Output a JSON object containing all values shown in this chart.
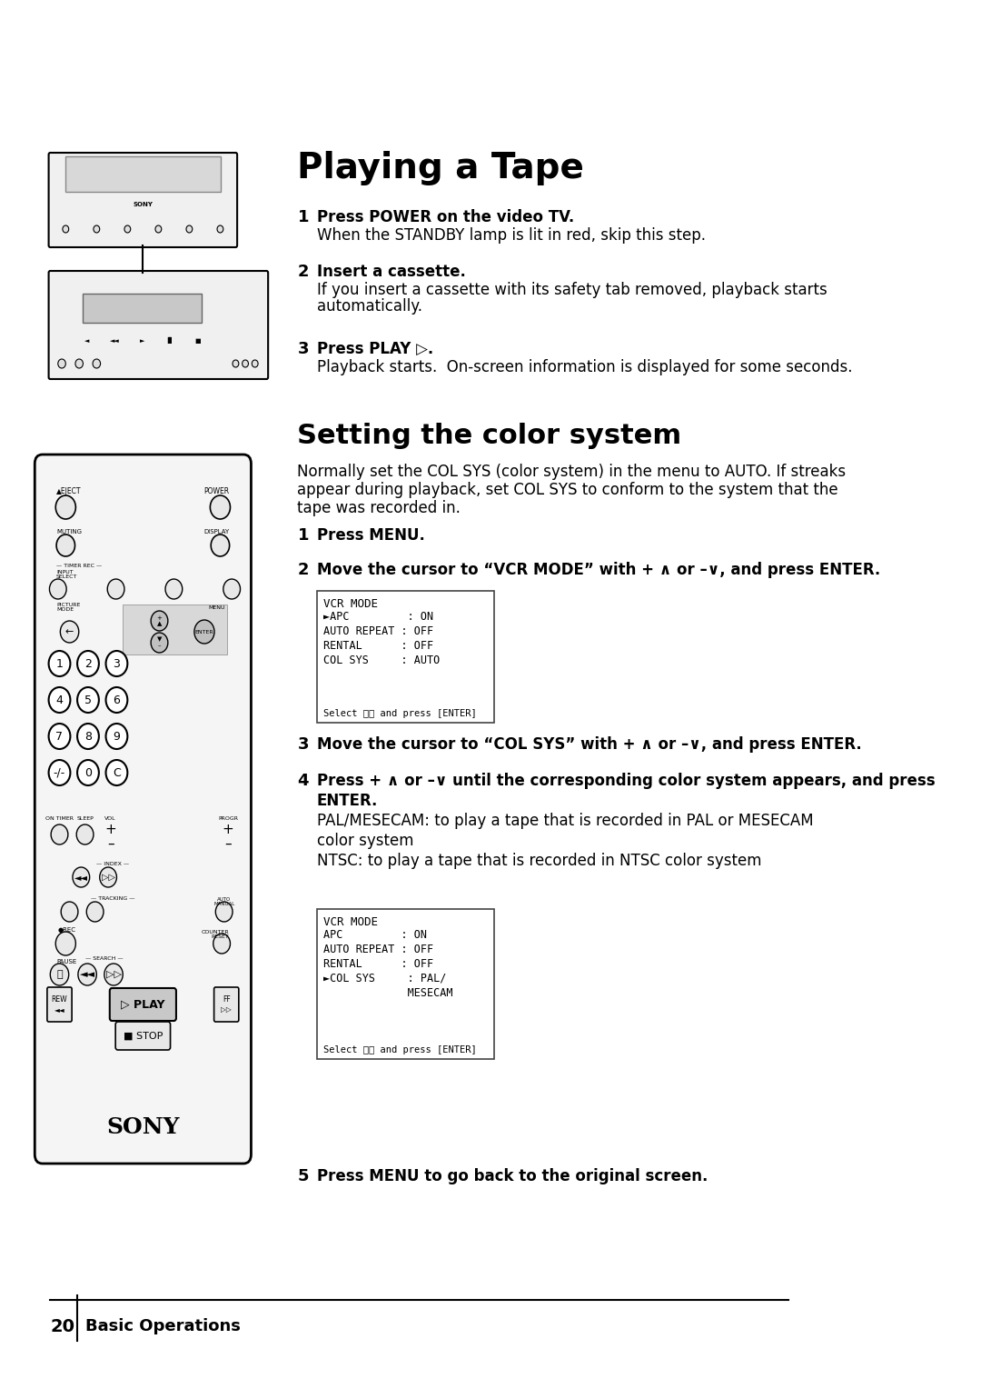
{
  "bg_color": "#ffffff",
  "title": "Playing a Tape",
  "section2_title": "Setting the color system",
  "page_number": "20",
  "page_label": "Basic Operations",
  "playing_steps": [
    {
      "num": "1",
      "bold": "Press POWER on the video TV.",
      "normal": "When the STANDBY lamp is lit in red, skip this step."
    },
    {
      "num": "2",
      "bold": "Insert a cassette.",
      "normal": "If you insert a cassette with its safety tab removed, playback starts\nautomatically."
    },
    {
      "num": "3",
      "bold": "Press PLAY ▷.",
      "normal": "Playback starts.  On-screen information is displayed for some seconds."
    }
  ],
  "color_intro": "Normally set the COL SYS (color system) in the menu to AUTO. If streaks\nappear during playback, set COL SYS to conform to the system that the\ntape was recorded in.",
  "color_steps": [
    {
      "num": "1",
      "text": "Press MENU."
    },
    {
      "num": "2",
      "text": "Move the cursor to “VCR MODE” with + ∧ or –∨, and press ENTER."
    },
    {
      "num": "3",
      "text": "Move the cursor to “COL SYS” with + ∧ or –∨, and press ENTER."
    },
    {
      "num": "4",
      "text": "Press + ∧ or –∨ until the corresponding color system appears, and press\nENTER.\nPAL/MESECAM: to play a tape that is recorded in PAL or MESECAM\ncolor system\nNTSC: to play a tape that is recorded in NTSC color system"
    },
    {
      "num": "5",
      "text": "Press MENU to go back to the original screen."
    }
  ],
  "menu_box1": {
    "title": "VCR MODE",
    "lines": [
      "►APC         : ON",
      "AUTO REPEAT : OFF",
      "RENTAL      : OFF",
      "COL SYS     : AUTO"
    ],
    "footer": "Select ⨧⨧ and press [ENTER]"
  },
  "menu_box2": {
    "title": "VCR MODE",
    "lines": [
      "APC         : ON",
      "AUTO REPEAT : OFF",
      "RENTAL      : OFF",
      "►COL SYS     : PAL/",
      "             MESECAM"
    ],
    "footer": "Select ⨧⨧ and press [ENTER]"
  }
}
